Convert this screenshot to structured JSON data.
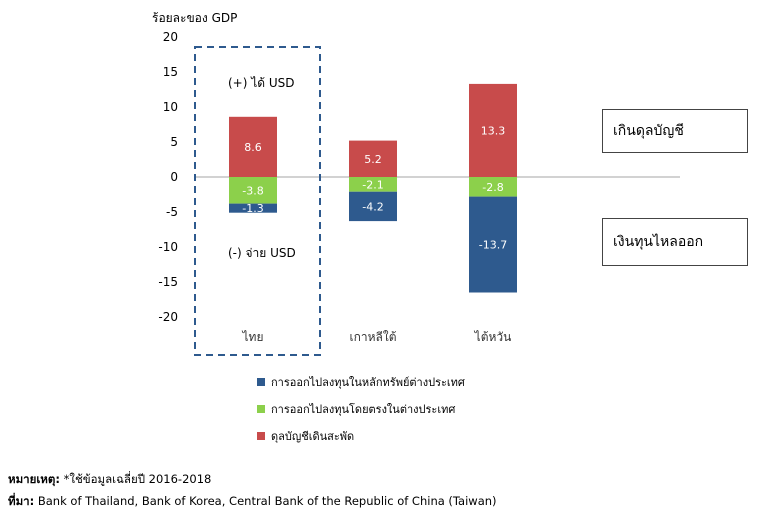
{
  "chart_data": {
    "type": "bar",
    "stacked": true,
    "ylabel": "ร้อยละของ GDP",
    "ylim": [
      -20,
      20
    ],
    "yticks": [
      20,
      15,
      10,
      5,
      0,
      -5,
      -10,
      -15,
      -20
    ],
    "categories": [
      "ไทย",
      "เกาหลีใต้",
      "ไต้หวัน"
    ],
    "series": [
      {
        "name": "การออกไปลงทุนในหลักทรัพย์ต่างประเทศ",
        "color": "#2e5a8e",
        "values": [
          -1.3,
          -4.2,
          -13.7
        ]
      },
      {
        "name": "การออกไปลงทุนโดยตรงในต่างประเทศ",
        "color": "#8cd04b",
        "values": [
          -3.8,
          -2.1,
          -2.8
        ]
      },
      {
        "name": "ดุลบัญชีเดินสะพัด",
        "color": "#c84b4b",
        "values": [
          8.6,
          5.2,
          13.3
        ]
      }
    ],
    "annotations": {
      "plus": "(+) ได้ USD",
      "minus": "(-) จ่าย USD",
      "box_surplus": "เกินดุลบัญชี",
      "box_outflow": "เงินทุนไหลออก"
    },
    "legend_position": "bottom"
  },
  "notes": {
    "note_label": "หมายเหตุ:",
    "note_text": " *ใช้ข้อมูลเฉลี่ยปี 2016-2018",
    "source_label": "ที่มา:",
    "source_text": " Bank of Thailand, Bank of Korea, Central Bank of the Republic of China (Taiwan)"
  }
}
